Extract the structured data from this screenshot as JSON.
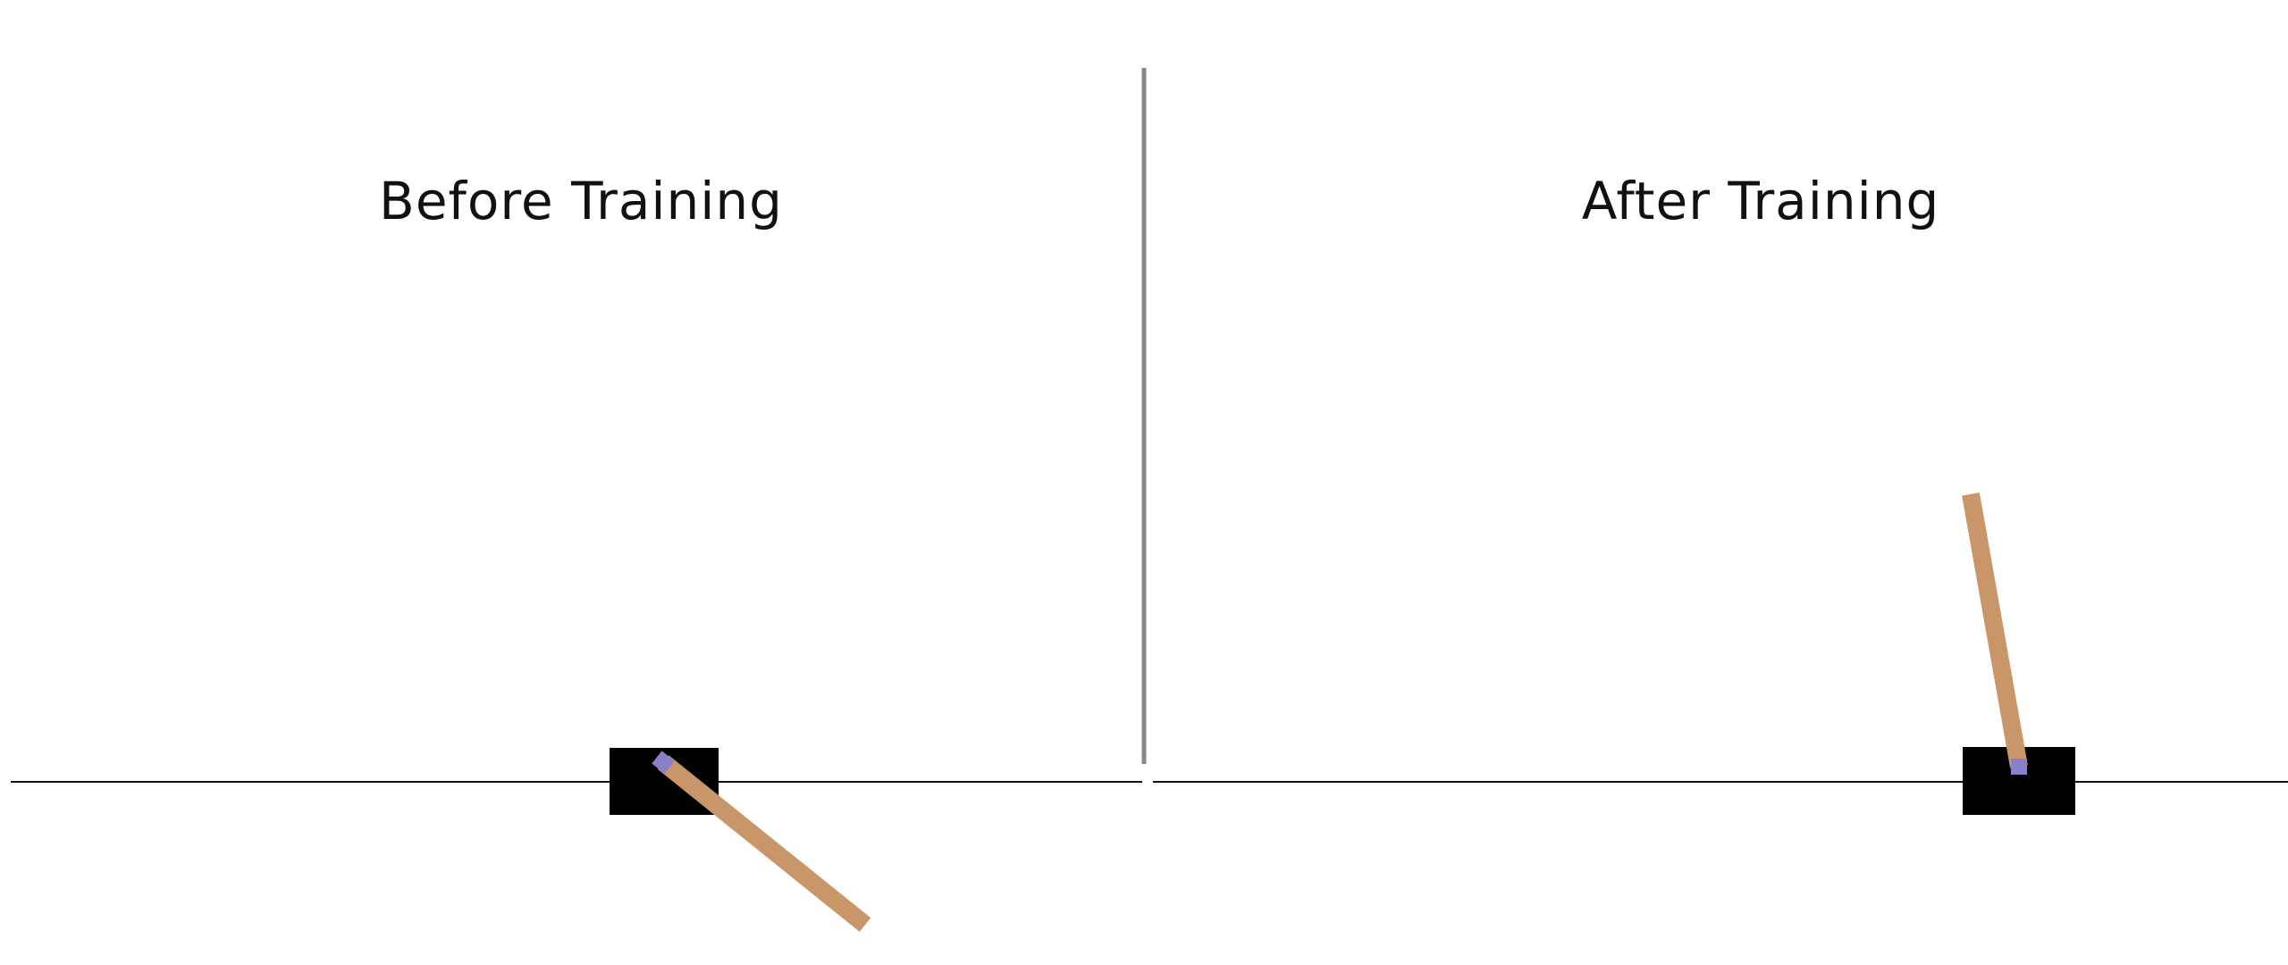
{
  "panels": {
    "before": {
      "title": "Before Training"
    },
    "after": {
      "title": "After Training"
    }
  },
  "colors": {
    "background": "#ffffff",
    "track": "#111111",
    "divider": "#888888",
    "cart": "#000000",
    "pole": "#c9966a",
    "axle": "#8a7fc9"
  }
}
